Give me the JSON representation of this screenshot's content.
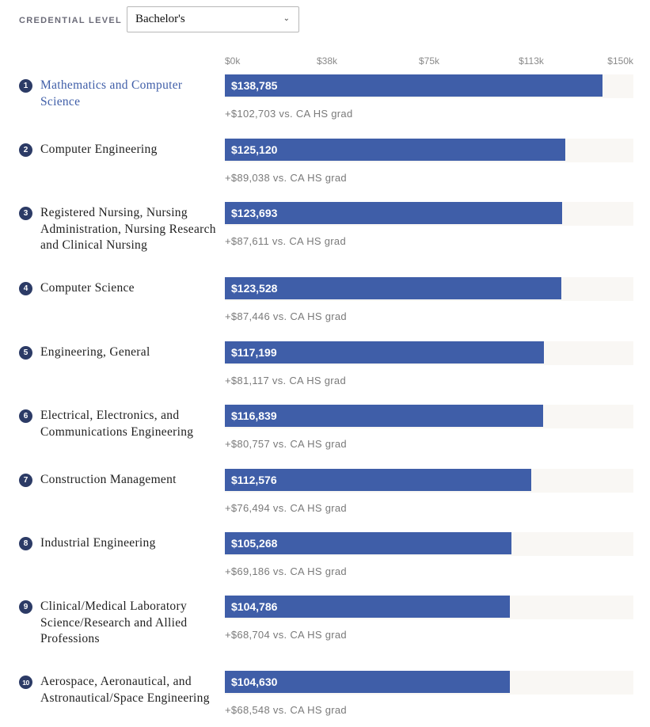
{
  "filter": {
    "label": "CREDENTIAL LEVEL",
    "selected": "Bachelor's"
  },
  "chart_data": {
    "type": "bar",
    "orientation": "horizontal",
    "xlim": [
      0,
      150000
    ],
    "axis_ticks": [
      "$0k",
      "$38k",
      "$75k",
      "$113k",
      "$150k"
    ],
    "axis_tick_values": [
      0,
      37500,
      75000,
      112500,
      150000
    ],
    "highlight_color": "#3f5ea8",
    "bar_color": "#3f5ea8",
    "track_color": "#f9f7f4",
    "bars": [
      {
        "rank": "1",
        "major": "Mathematics and Computer Science",
        "value": 138785,
        "value_label": "$138,785",
        "diff_label": "+$102,703 vs. CA HS grad",
        "active": true
      },
      {
        "rank": "2",
        "major": "Computer Engineering",
        "value": 125120,
        "value_label": "$125,120",
        "diff_label": "+$89,038 vs. CA HS grad"
      },
      {
        "rank": "3",
        "major": "Registered Nursing, Nursing Administration, Nursing Research and Clinical Nursing",
        "value": 123693,
        "value_label": "$123,693",
        "diff_label": "+$87,611 vs. CA HS grad"
      },
      {
        "rank": "4",
        "major": "Computer Science",
        "value": 123528,
        "value_label": "$123,528",
        "diff_label": "+$87,446 vs. CA HS grad"
      },
      {
        "rank": "5",
        "major": "Engineering, General",
        "value": 117199,
        "value_label": "$117,199",
        "diff_label": "+$81,117 vs. CA HS grad"
      },
      {
        "rank": "6",
        "major": "Electrical, Electronics, and Communications Engineering",
        "value": 116839,
        "value_label": "$116,839",
        "diff_label": "+$80,757 vs. CA HS grad"
      },
      {
        "rank": "7",
        "major": "Construction Management",
        "value": 112576,
        "value_label": "$112,576",
        "diff_label": "+$76,494 vs. CA HS grad"
      },
      {
        "rank": "8",
        "major": "Industrial Engineering",
        "value": 105268,
        "value_label": "$105,268",
        "diff_label": "+$69,186 vs. CA HS grad"
      },
      {
        "rank": "9",
        "major": "Clinical/Medical Laboratory Science/Research and Allied Professions",
        "value": 104786,
        "value_label": "$104,786",
        "diff_label": "+$68,704 vs. CA HS grad"
      },
      {
        "rank": "10",
        "major": "Aerospace, Aeronautical, and Astronautical/Space Engineering",
        "value": 104630,
        "value_label": "$104,630",
        "diff_label": "+$68,548 vs. CA HS grad"
      }
    ]
  }
}
